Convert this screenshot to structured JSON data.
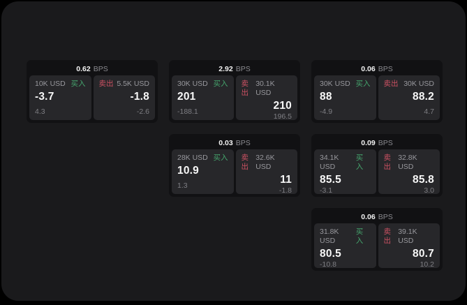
{
  "labels": {
    "bps_suffix": "BPS",
    "buy": "买入",
    "sell": "卖出"
  },
  "colors": {
    "window_bg": "#1a1a1c",
    "card_bg": "#111113",
    "panel_bg": "#27272a",
    "buy_green": "#45a56d",
    "sell_red": "#cb5162"
  },
  "cards": [
    {
      "row": 1,
      "col": 1,
      "bps": "0.62",
      "buy": {
        "size": "10K USD",
        "value": "-3.7",
        "sub": "4.3"
      },
      "sell": {
        "size": "5.5K USD",
        "value": "-1.8",
        "sub": "-2.6"
      }
    },
    {
      "row": 1,
      "col": 2,
      "bps": "2.92",
      "buy": {
        "size": "30K USD",
        "value": "201",
        "sub": "-188.1"
      },
      "sell": {
        "size": "30.1K USD",
        "value": "210",
        "sub": "196.5"
      }
    },
    {
      "row": 1,
      "col": 3,
      "bps": "0.06",
      "buy": {
        "size": "30K USD",
        "value": "88",
        "sub": "-4.9"
      },
      "sell": {
        "size": "30K USD",
        "value": "88.2",
        "sub": "4.7"
      }
    },
    {
      "row": 2,
      "col": 2,
      "bps": "0.03",
      "buy": {
        "size": "28K USD",
        "value": "10.9",
        "sub": "1.3"
      },
      "sell": {
        "size": "32.6K USD",
        "value": "11",
        "sub": "-1.8"
      }
    },
    {
      "row": 2,
      "col": 3,
      "bps": "0.09",
      "buy": {
        "size": "34.1K USD",
        "value": "85.5",
        "sub": "-3.1"
      },
      "sell": {
        "size": "32.8K USD",
        "value": "85.8",
        "sub": "3.0"
      }
    },
    {
      "row": 3,
      "col": 3,
      "bps": "0.06",
      "buy": {
        "size": "31.8K USD",
        "value": "80.5",
        "sub": "-10.8"
      },
      "sell": {
        "size": "39.1K USD",
        "value": "80.7",
        "sub": "10.2"
      }
    }
  ]
}
